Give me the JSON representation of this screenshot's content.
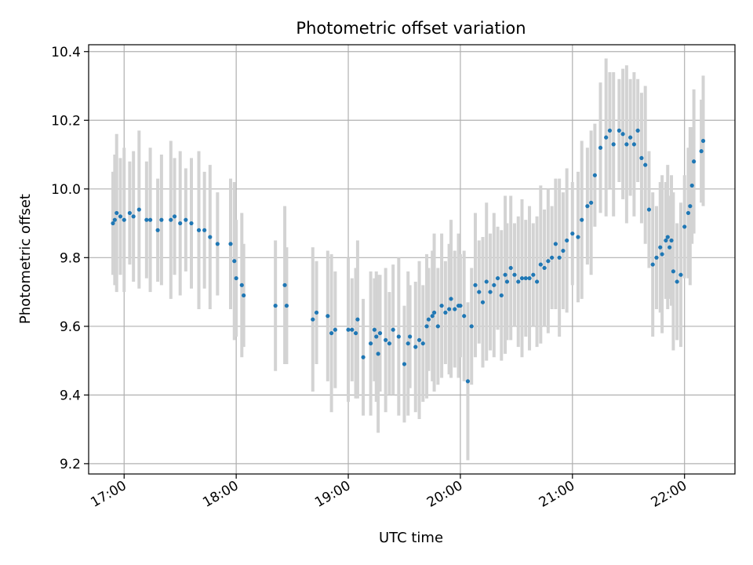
{
  "chart_data": {
    "type": "scatter",
    "title": "Photometric offset variation",
    "xlabel": "UTC time",
    "ylabel": "Photometric offset",
    "x_ticks": [
      "17:00",
      "18:00",
      "19:00",
      "20:00",
      "21:00",
      "22:00"
    ],
    "x_tick_minutes": [
      1020,
      1080,
      1140,
      1200,
      1260,
      1320
    ],
    "y_ticks": [
      "9.2",
      "9.4",
      "9.6",
      "9.8",
      "10.0",
      "10.2",
      "10.4"
    ],
    "y_tick_values": [
      9.2,
      9.4,
      9.6,
      9.8,
      10.0,
      10.2,
      10.4
    ],
    "xlim": [
      "16:41",
      "22:27"
    ],
    "ylim": [
      9.17,
      10.42
    ],
    "grid": true,
    "colors": {
      "points": "#1f77b4",
      "errorbars": "#d3d3d3",
      "grid": "#b0b0b0"
    },
    "series": [
      {
        "x": [
          "16:54",
          "16:55",
          "16:56",
          "16:58",
          "17:00",
          "17:03",
          "17:05",
          "17:08",
          "17:12",
          "17:14",
          "17:18",
          "17:20",
          "17:25",
          "17:27",
          "17:30",
          "17:33",
          "17:36",
          "17:40",
          "17:43",
          "17:46",
          "17:50",
          "17:57",
          "17:59",
          "18:00",
          "18:03",
          "18:04",
          "18:21",
          "18:26",
          "18:27",
          "18:41",
          "18:43",
          "18:49",
          "18:51",
          "18:53",
          "19:00",
          "19:02",
          "19:04",
          "19:05",
          "19:08",
          "19:12",
          "19:14",
          "19:15",
          "19:16",
          "19:17",
          "19:20",
          "19:22",
          "19:24",
          "19:27",
          "19:30",
          "19:32",
          "19:33",
          "19:36",
          "19:38",
          "19:40",
          "19:42",
          "19:43",
          "19:45",
          "19:46",
          "19:48",
          "19:50",
          "19:52",
          "19:54",
          "19:55",
          "19:57",
          "19:59",
          "20:00",
          "20:02",
          "20:04",
          "20:06",
          "20:08",
          "20:10",
          "20:12",
          "20:14",
          "20:16",
          "20:18",
          "20:20",
          "20:22",
          "20:24",
          "20:25",
          "20:27",
          "20:29",
          "20:31",
          "20:33",
          "20:35",
          "20:37",
          "20:39",
          "20:41",
          "20:43",
          "20:45",
          "20:47",
          "20:49",
          "20:51",
          "20:53",
          "20:55",
          "20:57",
          "21:00",
          "21:03",
          "21:05",
          "21:08",
          "21:10",
          "21:12",
          "21:15",
          "21:18",
          "21:20",
          "21:22",
          "21:25",
          "21:27",
          "21:29",
          "21:31",
          "21:33",
          "21:35",
          "21:37",
          "21:39",
          "21:41",
          "21:43",
          "21:45",
          "21:47",
          "21:48",
          "21:50",
          "21:51",
          "21:52",
          "21:53",
          "21:54",
          "21:56",
          "21:58",
          "22:00",
          "22:02",
          "22:03",
          "22:04",
          "22:05",
          "22:09",
          "22:10"
        ],
        "y": [
          9.9,
          9.91,
          9.93,
          9.92,
          9.91,
          9.93,
          9.92,
          9.94,
          9.91,
          9.91,
          9.88,
          9.91,
          9.91,
          9.92,
          9.9,
          9.91,
          9.9,
          9.88,
          9.88,
          9.86,
          9.84,
          9.84,
          9.79,
          9.74,
          9.72,
          9.69,
          9.66,
          9.72,
          9.66,
          9.62,
          9.64,
          9.63,
          9.58,
          9.59,
          9.59,
          9.59,
          9.58,
          9.62,
          9.51,
          9.55,
          9.59,
          9.57,
          9.52,
          9.58,
          9.56,
          9.55,
          9.59,
          9.57,
          9.49,
          9.55,
          9.57,
          9.54,
          9.56,
          9.55,
          9.6,
          9.62,
          9.63,
          9.64,
          9.6,
          9.66,
          9.64,
          9.65,
          9.68,
          9.65,
          9.66,
          9.66,
          9.63,
          9.44,
          9.6,
          9.72,
          9.7,
          9.67,
          9.73,
          9.7,
          9.72,
          9.74,
          9.69,
          9.75,
          9.73,
          9.77,
          9.75,
          9.73,
          9.74,
          9.74,
          9.74,
          9.75,
          9.73,
          9.78,
          9.77,
          9.79,
          9.8,
          9.84,
          9.8,
          9.82,
          9.85,
          9.87,
          9.86,
          9.91,
          9.95,
          9.96,
          10.04,
          10.12,
          10.15,
          10.17,
          10.13,
          10.17,
          10.16,
          10.13,
          10.15,
          10.13,
          10.17,
          10.09,
          10.07,
          9.94,
          9.78,
          9.8,
          9.83,
          9.81,
          9.85,
          9.86,
          9.83,
          9.85,
          9.76,
          9.73,
          9.75,
          9.89,
          9.93,
          9.95,
          10.01,
          10.08,
          10.11,
          10.14
        ]
      }
    ]
  }
}
